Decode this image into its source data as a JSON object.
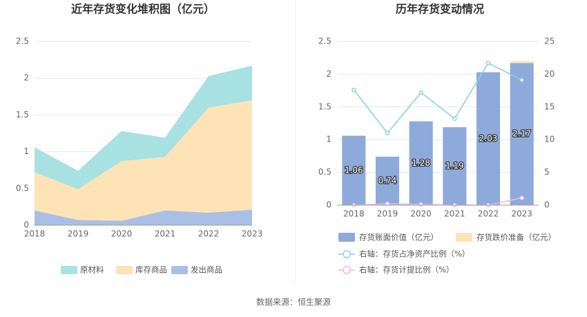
{
  "chart_data": [
    {
      "type": "area",
      "title": "近年存货变化堆积图（亿元）",
      "categories": [
        "2018",
        "2019",
        "2020",
        "2021",
        "2022",
        "2023"
      ],
      "series": [
        {
          "name": "发出商品",
          "color": "#a9bfe6",
          "values": [
            0.2,
            0.07,
            0.06,
            0.2,
            0.17,
            0.21
          ]
        },
        {
          "name": "库存商品",
          "color": "#fde3b5",
          "values": [
            0.52,
            0.42,
            0.81,
            0.73,
            1.43,
            1.49
          ]
        },
        {
          "name": "原材料",
          "color": "#a8e1e1",
          "values": [
            0.34,
            0.25,
            0.41,
            0.26,
            0.43,
            0.47
          ]
        }
      ],
      "legend_order": [
        2,
        1,
        0
      ],
      "stacked": true,
      "ylim": [
        0,
        2.5
      ],
      "yticks": [
        0,
        0.5,
        1,
        1.5,
        2,
        2.5
      ],
      "grid": true
    },
    {
      "type": "bar",
      "title": "历年存货变动情况",
      "categories": [
        "2018",
        "2019",
        "2020",
        "2021",
        "2022",
        "2023"
      ],
      "series": [
        {
          "name": "存货账面价值（亿元）",
          "color": "#8eaadb",
          "values": [
            1.06,
            0.74,
            1.28,
            1.19,
            2.03,
            2.17
          ],
          "data_labels": true
        },
        {
          "name": "存货跌价准备（亿元）",
          "color": "#fde3b5",
          "values": [
            0,
            0,
            0,
            0,
            0,
            0.03
          ]
        },
        {
          "name": "右轴：存货占净资产比例（%）",
          "color": "#86d4da",
          "type": "line",
          "axis": "y2",
          "values": [
            17.6,
            11,
            17.2,
            13.2,
            21.7,
            19.1
          ]
        },
        {
          "name": "右轴：存货计提比例（%）",
          "color": "#eab8e4",
          "type": "line",
          "axis": "y2",
          "values": [
            0,
            0.2,
            0.1,
            0,
            0,
            1.1
          ]
        }
      ],
      "stacked": true,
      "ylim": [
        0,
        2.5
      ],
      "yticks": [
        0,
        0.5,
        1,
        1.5,
        2,
        2.5
      ],
      "y2lim": [
        0,
        25
      ],
      "y2ticks": [
        0,
        5,
        10,
        15,
        20,
        25
      ],
      "grid": true
    }
  ],
  "source": "数据来源：恒生聚源"
}
